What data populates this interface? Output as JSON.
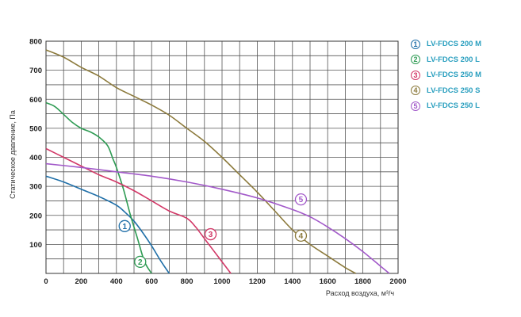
{
  "chart_data": {
    "type": "line",
    "xlabel": "Расход воздуха, м³/ч",
    "ylabel": "Статическое давление, Па",
    "xlim": [
      0,
      2000
    ],
    "ylim": [
      0,
      800
    ],
    "x_ticks": [
      "0",
      "200",
      "400",
      "600",
      "800",
      "1000",
      "1200",
      "1400",
      "1600",
      "1800",
      "2000"
    ],
    "y_ticks": [
      "100",
      "200",
      "300",
      "400",
      "500",
      "600",
      "700",
      "800"
    ],
    "grid": true,
    "legend_position": "top-right",
    "series": [
      {
        "name": "LV-FDCS 200 M",
        "marker": "1",
        "color": "#1f6fa8",
        "x": [
          0,
          100,
          200,
          300,
          400,
          450,
          500,
          550,
          600,
          650,
          700
        ],
        "y": [
          335,
          315,
          290,
          265,
          235,
          210,
          180,
          140,
          95,
          45,
          0
        ],
        "label_at": [
          447,
          163
        ]
      },
      {
        "name": "LV-FDCS 200 L",
        "marker": "2",
        "color": "#2e9b53",
        "x": [
          0,
          50,
          100,
          150,
          200,
          250,
          300,
          350,
          380,
          400,
          440,
          480,
          520,
          560,
          600
        ],
        "y": [
          588,
          575,
          548,
          520,
          500,
          488,
          470,
          440,
          395,
          365,
          290,
          200,
          120,
          40,
          0
        ],
        "label_at": [
          535,
          40
        ]
      },
      {
        "name": "LV-FDCS 250 M",
        "marker": "3",
        "color": "#d23867",
        "x": [
          0,
          100,
          200,
          300,
          400,
          500,
          600,
          700,
          800,
          850,
          900,
          950,
          1000,
          1050
        ],
        "y": [
          430,
          400,
          370,
          340,
          315,
          285,
          250,
          215,
          190,
          160,
          120,
          80,
          40,
          0
        ],
        "label_at": [
          935,
          135
        ]
      },
      {
        "name": "LV-FDCS 250 S",
        "marker": "4",
        "color": "#8c7a3c",
        "x": [
          0,
          100,
          200,
          300,
          400,
          500,
          600,
          700,
          800,
          900,
          1000,
          1100,
          1200,
          1300,
          1400,
          1500,
          1600,
          1700,
          1760
        ],
        "y": [
          770,
          745,
          710,
          680,
          640,
          610,
          580,
          545,
          500,
          455,
          400,
          340,
          280,
          215,
          150,
          100,
          60,
          20,
          0
        ],
        "label_at": [
          1448,
          130
        ]
      },
      {
        "name": "LV-FDCS 250 L",
        "marker": "5",
        "color": "#a259c9",
        "x": [
          0,
          200,
          400,
          600,
          800,
          1000,
          1200,
          1400,
          1500,
          1600,
          1700,
          1800,
          1900,
          1950
        ],
        "y": [
          378,
          365,
          350,
          335,
          315,
          290,
          260,
          220,
          195,
          160,
          120,
          75,
          25,
          0
        ],
        "label_at": [
          1448,
          255
        ]
      }
    ]
  }
}
